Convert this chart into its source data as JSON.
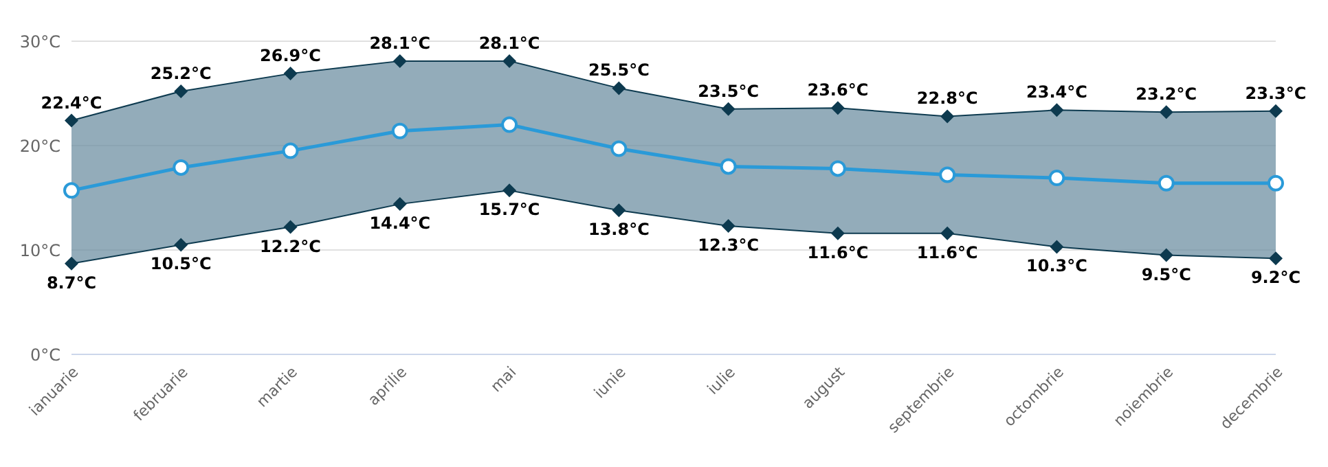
{
  "chart_data": {
    "type": "line",
    "categories": [
      "ianuarie",
      "februarie",
      "martie",
      "aprilie",
      "mai",
      "iunie",
      "iulie",
      "august",
      "septembrie",
      "octombrie",
      "noiembrie",
      "decembrie"
    ],
    "series": [
      {
        "color": "#0d3a4f",
        "marker": "diamond",
        "values": [
          22.4,
          25.2,
          26.9,
          28.1,
          28.1,
          25.5,
          23.5,
          23.6,
          22.8,
          23.4,
          23.2,
          23.3
        ],
        "value_labels": [
          "22.4°C",
          "25.2°C",
          "26.9°C",
          "28.1°C",
          "28.1°C",
          "25.5°C",
          "23.5°C",
          "23.6°C",
          "22.8°C",
          "23.4°C",
          "23.2°C",
          "23.3°C"
        ]
      },
      {
        "color": "#0d3a4f",
        "marker": "diamond",
        "values": [
          8.7,
          10.5,
          12.2,
          14.4,
          15.7,
          13.8,
          12.3,
          11.6,
          11.6,
          10.3,
          9.5,
          9.2
        ],
        "value_labels": [
          "8.7°C",
          "10.5°C",
          "12.2°C",
          "14.4°C",
          "15.7°C",
          "13.8°C",
          "12.3°C",
          "11.6°C",
          "11.6°C",
          "10.3°C",
          "9.5°C",
          "9.2°C"
        ]
      },
      {
        "color": "#2a9ad8",
        "marker": "circle",
        "values": [
          15.7,
          17.9,
          19.5,
          21.4,
          22.0,
          19.7,
          18.0,
          17.8,
          17.2,
          16.9,
          16.4,
          16.4
        ],
        "lower": [
          8.7,
          10.5,
          12.2,
          14.4,
          15.7,
          13.8,
          12.3,
          11.6,
          11.6,
          10.3,
          9.5,
          9.2
        ],
        "upper": [
          22.4,
          25.2,
          26.9,
          28.1,
          28.1,
          25.5,
          23.5,
          23.6,
          22.8,
          23.4,
          23.2,
          23.3
        ]
      }
    ],
    "ylim": [
      0,
      30
    ],
    "yticks": [
      {
        "value": 0,
        "label": "0°C"
      },
      {
        "value": 10,
        "label": "10°C"
      },
      {
        "value": 20,
        "label": "20°C"
      },
      {
        "value": 30,
        "label": "30°C"
      }
    ],
    "grid": "y"
  }
}
